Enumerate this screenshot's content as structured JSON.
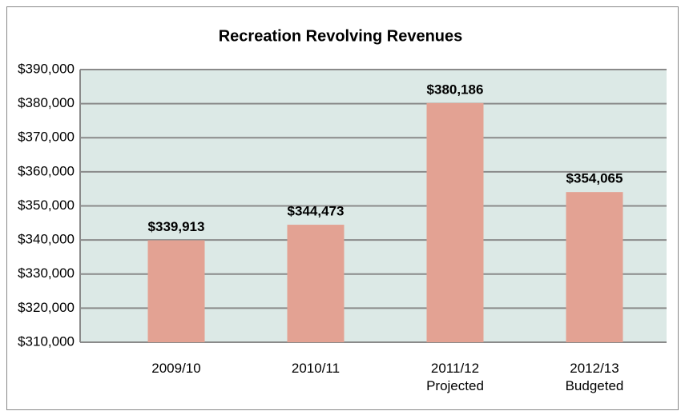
{
  "chart_data": {
    "type": "bar",
    "title": "Recreation Revolving Revenues",
    "categories": [
      "2009/10",
      "2010/11",
      "2011/12\nProjected",
      "2012/13\nBudgeted"
    ],
    "values": [
      339913,
      344473,
      380186,
      354065
    ],
    "value_labels": [
      "$339,913",
      "$344,473",
      "$380,186",
      "$354,065"
    ],
    "color": "#e3a293",
    "ylim": [
      310000,
      390000
    ],
    "yticks": [
      {
        "value": 310000,
        "label": "$310,000"
      },
      {
        "value": 320000,
        "label": "$320,000"
      },
      {
        "value": 330000,
        "label": "$330,000"
      },
      {
        "value": 340000,
        "label": "$340,000"
      },
      {
        "value": 350000,
        "label": "$350,000"
      },
      {
        "value": 360000,
        "label": "$360,000"
      },
      {
        "value": 370000,
        "label": "$370,000"
      },
      {
        "value": 380000,
        "label": "$380,000"
      },
      {
        "value": 390000,
        "label": "$390,000"
      }
    ],
    "grid": true
  }
}
